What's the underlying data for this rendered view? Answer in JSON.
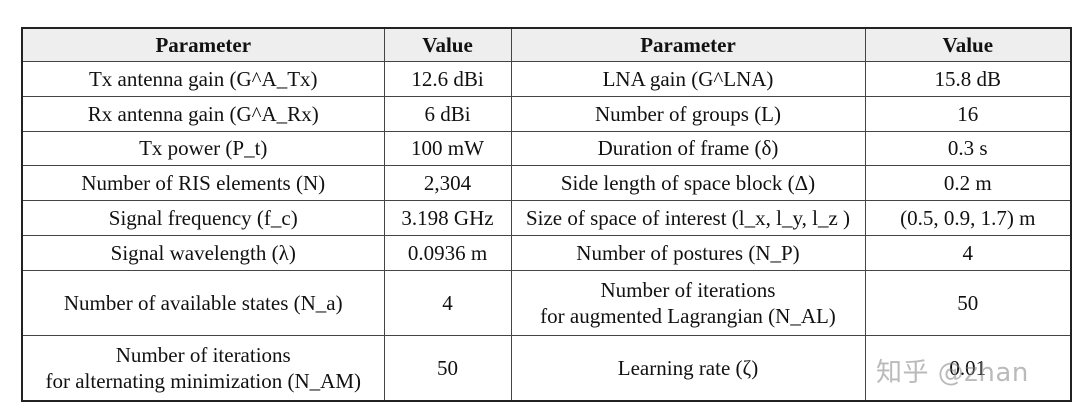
{
  "table": {
    "headers": [
      "Parameter",
      "Value",
      "Parameter",
      "Value"
    ],
    "rows": [
      {
        "p1": "Tx antenna gain (G^A_Tx)",
        "v1": "12.6 dBi",
        "p2": "LNA gain (G^LNA)",
        "v2": "15.8 dB"
      },
      {
        "p1": "Rx antenna gain (G^A_Rx)",
        "v1": "6 dBi",
        "p2": "Number of groups (L)",
        "v2": "16"
      },
      {
        "p1": "Tx power (P_t)",
        "v1": "100 mW",
        "p2": "Duration of frame (δ)",
        "v2": "0.3 s"
      },
      {
        "p1": "Number of RIS elements (N)",
        "v1": "2,304",
        "p2": "Side length of space block (Δ)",
        "v2": "0.2 m"
      },
      {
        "p1": "Signal frequency (f_c)",
        "v1": "3.198 GHz",
        "p2": "Size of space of interest (l_x, l_y, l_z )",
        "v2": "(0.5, 0.9, 1.7) m"
      },
      {
        "p1": "Signal wavelength (λ)",
        "v1": "0.0936 m",
        "p2": "Number of postures (N_P)",
        "v2": "4"
      },
      {
        "p1": "Number of available states (N_a)",
        "v1": "4",
        "p2a": "Number of iterations",
        "p2b": "for augmented Lagrangian (N_AL)",
        "v2": "50"
      },
      {
        "p1a": "Number of iterations",
        "p1b": "for alternating minimization (N_AM)",
        "v1": "50",
        "p2": "Learning rate (ζ)",
        "v2": "0.01"
      }
    ]
  },
  "watermark": "知乎 @zhan"
}
